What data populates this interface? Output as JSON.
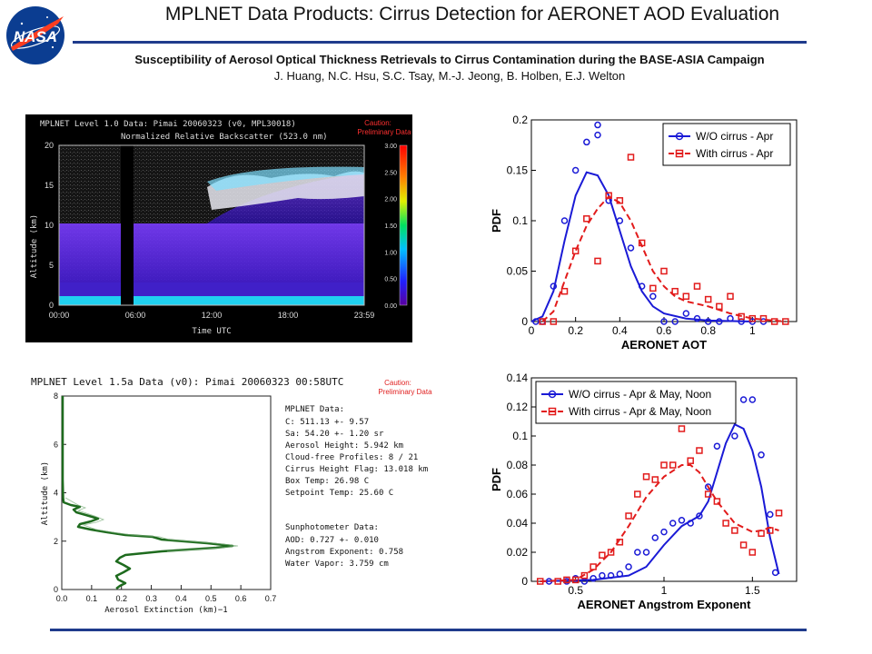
{
  "header": {
    "logo_text": "NASA",
    "title": "MPLNET Data Products:  Cirrus Detection for AERONET AOD Evaluation",
    "subtitle": "Susceptibility of Aerosol Optical Thickness Retrievals to Cirrus Contamination during the BASE-ASIA Campaign",
    "authors": "J. Huang, N.C. Hsu, S.C. Tsay, M.-J. Jeong, B. Holben, E.J. Welton"
  },
  "colors": {
    "rule": "#1f3b8c",
    "wo_cirrus": "#1a1ad6",
    "with_cirrus": "#e21b1b",
    "profile": "#1e6b1e"
  },
  "backscatter_panel": {
    "title": "MPLNET Level 1.0 Data: Pimai 20060323 (v0, MPL30018)",
    "subtitle": "Normalized Relative Backscatter (523.0 nm)",
    "caution": [
      "Caution:",
      "Preliminary Data"
    ],
    "ylabel": "Altitude (km)",
    "xlabel": "Time UTC",
    "yticks": [
      "20",
      "15",
      "10",
      "5",
      "0"
    ],
    "xticks": [
      "00:00",
      "06:00",
      "12:00",
      "18:00",
      "23:59"
    ],
    "colorbar_ticks": [
      "3.00",
      "2.50",
      "2.00",
      "1.50",
      "1.00",
      "0.50",
      "0.00"
    ]
  },
  "profile_panel": {
    "title": "MPLNET Level 1.5a Data (v0): Pimai 20060323 00:58UTC",
    "caution": [
      "Caution:",
      "Preliminary Data"
    ],
    "ylabel": "Altitude (km)",
    "xlabel": "Aerosol Extinction (km)−1",
    "yticks": [
      "8",
      "6",
      "4",
      "2",
      "0"
    ],
    "xticks": [
      "0.0",
      "0.1",
      "0.2",
      "0.3",
      "0.4",
      "0.5",
      "0.6",
      "0.7"
    ],
    "mplnet_header": "MPLNET Data:",
    "mplnet_lines": [
      "C: 511.13 +- 9.57",
      "Sa: 54.20 +- 1.20 sr",
      "Aerosol Height: 5.942 km",
      "Cloud-free Profiles: 8 / 21",
      "Cirrus Height Flag: 13.018 km",
      "Box Temp: 26.98 C",
      "Setpoint Temp: 25.60 C"
    ],
    "sun_header": "Sunphotometer Data:",
    "sun_lines": [
      "AOD: 0.727 +- 0.010",
      "Angstrom Exponent: 0.758",
      "Water Vapor: 3.759 cm"
    ]
  },
  "chart_data": [
    {
      "type": "scatter",
      "xlabel": "AERONET AOT",
      "ylabel": "PDF",
      "xlim": [
        0,
        1.2
      ],
      "ylim": [
        0,
        0.2
      ],
      "xticks": [
        "0",
        "0.2",
        "0.4",
        "0.6",
        "0.8",
        "1"
      ],
      "yticks": [
        "0",
        "0.05",
        "0.1",
        "0.15",
        "0.2"
      ],
      "legend_position": "top-right",
      "series": [
        {
          "name": "W/O cirrus - Apr",
          "marker": "circle",
          "points": [
            [
              0.02,
              0.0
            ],
            [
              0.05,
              0.0
            ],
            [
              0.1,
              0.035
            ],
            [
              0.15,
              0.1
            ],
            [
              0.2,
              0.15
            ],
            [
              0.25,
              0.178
            ],
            [
              0.3,
              0.185
            ],
            [
              0.3,
              0.195
            ],
            [
              0.35,
              0.12
            ],
            [
              0.4,
              0.1
            ],
            [
              0.45,
              0.073
            ],
            [
              0.5,
              0.035
            ],
            [
              0.55,
              0.025
            ],
            [
              0.6,
              0.0
            ],
            [
              0.65,
              0.0
            ],
            [
              0.7,
              0.008
            ],
            [
              0.75,
              0.003
            ],
            [
              0.8,
              0.0
            ],
            [
              0.85,
              0.0
            ],
            [
              0.9,
              0.003
            ],
            [
              0.95,
              0.0
            ],
            [
              1.0,
              0.0
            ],
            [
              1.05,
              0.0
            ]
          ],
          "line": [
            [
              0.0,
              0.0
            ],
            [
              0.05,
              0.005
            ],
            [
              0.1,
              0.03
            ],
            [
              0.15,
              0.08
            ],
            [
              0.2,
              0.125
            ],
            [
              0.25,
              0.148
            ],
            [
              0.3,
              0.145
            ],
            [
              0.35,
              0.125
            ],
            [
              0.4,
              0.09
            ],
            [
              0.45,
              0.055
            ],
            [
              0.5,
              0.03
            ],
            [
              0.55,
              0.015
            ],
            [
              0.6,
              0.008
            ],
            [
              0.7,
              0.003
            ],
            [
              0.8,
              0.001
            ],
            [
              1.0,
              0.0
            ]
          ]
        },
        {
          "name": "With cirrus - Apr",
          "marker": "square",
          "points": [
            [
              0.05,
              0.0
            ],
            [
              0.1,
              0.0
            ],
            [
              0.15,
              0.03
            ],
            [
              0.2,
              0.07
            ],
            [
              0.25,
              0.102
            ],
            [
              0.3,
              0.06
            ],
            [
              0.35,
              0.125
            ],
            [
              0.4,
              0.12
            ],
            [
              0.45,
              0.163
            ],
            [
              0.5,
              0.078
            ],
            [
              0.55,
              0.033
            ],
            [
              0.6,
              0.05
            ],
            [
              0.65,
              0.03
            ],
            [
              0.7,
              0.025
            ],
            [
              0.75,
              0.035
            ],
            [
              0.8,
              0.022
            ],
            [
              0.85,
              0.015
            ],
            [
              0.9,
              0.025
            ],
            [
              0.95,
              0.005
            ],
            [
              1.0,
              0.003
            ],
            [
              1.05,
              0.003
            ],
            [
              1.1,
              0.0
            ],
            [
              1.15,
              0.0
            ]
          ],
          "line": [
            [
              0.05,
              0.0
            ],
            [
              0.1,
              0.01
            ],
            [
              0.15,
              0.04
            ],
            [
              0.2,
              0.07
            ],
            [
              0.25,
              0.095
            ],
            [
              0.3,
              0.112
            ],
            [
              0.35,
              0.124
            ],
            [
              0.4,
              0.118
            ],
            [
              0.45,
              0.1
            ],
            [
              0.5,
              0.075
            ],
            [
              0.55,
              0.05
            ],
            [
              0.6,
              0.035
            ],
            [
              0.65,
              0.025
            ],
            [
              0.7,
              0.02
            ],
            [
              0.8,
              0.015
            ],
            [
              0.9,
              0.008
            ],
            [
              1.0,
              0.003
            ],
            [
              1.15,
              0.0
            ]
          ]
        }
      ]
    },
    {
      "type": "scatter",
      "xlabel": "AERONET Angstrom Exponent",
      "ylabel": "PDF",
      "xlim": [
        0.25,
        1.75
      ],
      "ylim": [
        0,
        0.14
      ],
      "xticks": [
        "0.5",
        "1",
        "1.5"
      ],
      "yticks": [
        "0",
        "0.02",
        "0.04",
        "0.06",
        "0.08",
        "0.1",
        "0.12",
        "0.14"
      ],
      "legend_position": "top-left",
      "series": [
        {
          "name": "W/O cirrus - Apr & May, Noon",
          "marker": "circle",
          "points": [
            [
              0.35,
              0.0
            ],
            [
              0.45,
              0.0
            ],
            [
              0.5,
              0.002
            ],
            [
              0.55,
              0.0
            ],
            [
              0.6,
              0.002
            ],
            [
              0.65,
              0.004
            ],
            [
              0.7,
              0.004
            ],
            [
              0.75,
              0.005
            ],
            [
              0.8,
              0.01
            ],
            [
              0.85,
              0.02
            ],
            [
              0.9,
              0.02
            ],
            [
              0.95,
              0.03
            ],
            [
              1.0,
              0.034
            ],
            [
              1.05,
              0.04
            ],
            [
              1.1,
              0.042
            ],
            [
              1.15,
              0.04
            ],
            [
              1.2,
              0.045
            ],
            [
              1.25,
              0.065
            ],
            [
              1.3,
              0.093
            ],
            [
              1.35,
              0.115
            ],
            [
              1.4,
              0.1
            ],
            [
              1.45,
              0.125
            ],
            [
              1.5,
              0.125
            ],
            [
              1.55,
              0.087
            ],
            [
              1.6,
              0.046
            ],
            [
              1.63,
              0.006
            ]
          ],
          "line": [
            [
              0.3,
              0.0
            ],
            [
              0.6,
              0.001
            ],
            [
              0.8,
              0.004
            ],
            [
              0.9,
              0.01
            ],
            [
              1.0,
              0.025
            ],
            [
              1.1,
              0.038
            ],
            [
              1.2,
              0.045
            ],
            [
              1.25,
              0.055
            ],
            [
              1.3,
              0.075
            ],
            [
              1.35,
              0.095
            ],
            [
              1.4,
              0.108
            ],
            [
              1.45,
              0.105
            ],
            [
              1.5,
              0.09
            ],
            [
              1.55,
              0.065
            ],
            [
              1.6,
              0.03
            ],
            [
              1.65,
              0.005
            ]
          ]
        },
        {
          "name": "With cirrus - Apr & May, Noon",
          "marker": "square",
          "points": [
            [
              0.3,
              0.0
            ],
            [
              0.4,
              0.0
            ],
            [
              0.45,
              0.001
            ],
            [
              0.5,
              0.001
            ],
            [
              0.55,
              0.004
            ],
            [
              0.6,
              0.01
            ],
            [
              0.65,
              0.018
            ],
            [
              0.7,
              0.02
            ],
            [
              0.75,
              0.027
            ],
            [
              0.8,
              0.045
            ],
            [
              0.85,
              0.06
            ],
            [
              0.9,
              0.072
            ],
            [
              0.95,
              0.07
            ],
            [
              1.0,
              0.08
            ],
            [
              1.05,
              0.08
            ],
            [
              1.1,
              0.105
            ],
            [
              1.15,
              0.083
            ],
            [
              1.2,
              0.09
            ],
            [
              1.25,
              0.06
            ],
            [
              1.3,
              0.055
            ],
            [
              1.35,
              0.04
            ],
            [
              1.4,
              0.035
            ],
            [
              1.45,
              0.025
            ],
            [
              1.5,
              0.02
            ],
            [
              1.55,
              0.033
            ],
            [
              1.6,
              0.035
            ],
            [
              1.65,
              0.047
            ]
          ],
          "line": [
            [
              0.3,
              0.0
            ],
            [
              0.5,
              0.001
            ],
            [
              0.6,
              0.008
            ],
            [
              0.7,
              0.02
            ],
            [
              0.8,
              0.038
            ],
            [
              0.9,
              0.058
            ],
            [
              1.0,
              0.072
            ],
            [
              1.1,
              0.08
            ],
            [
              1.15,
              0.08
            ],
            [
              1.2,
              0.075
            ],
            [
              1.3,
              0.055
            ],
            [
              1.4,
              0.04
            ],
            [
              1.5,
              0.034
            ],
            [
              1.55,
              0.035
            ],
            [
              1.6,
              0.037
            ],
            [
              1.65,
              0.035
            ]
          ]
        }
      ]
    }
  ]
}
